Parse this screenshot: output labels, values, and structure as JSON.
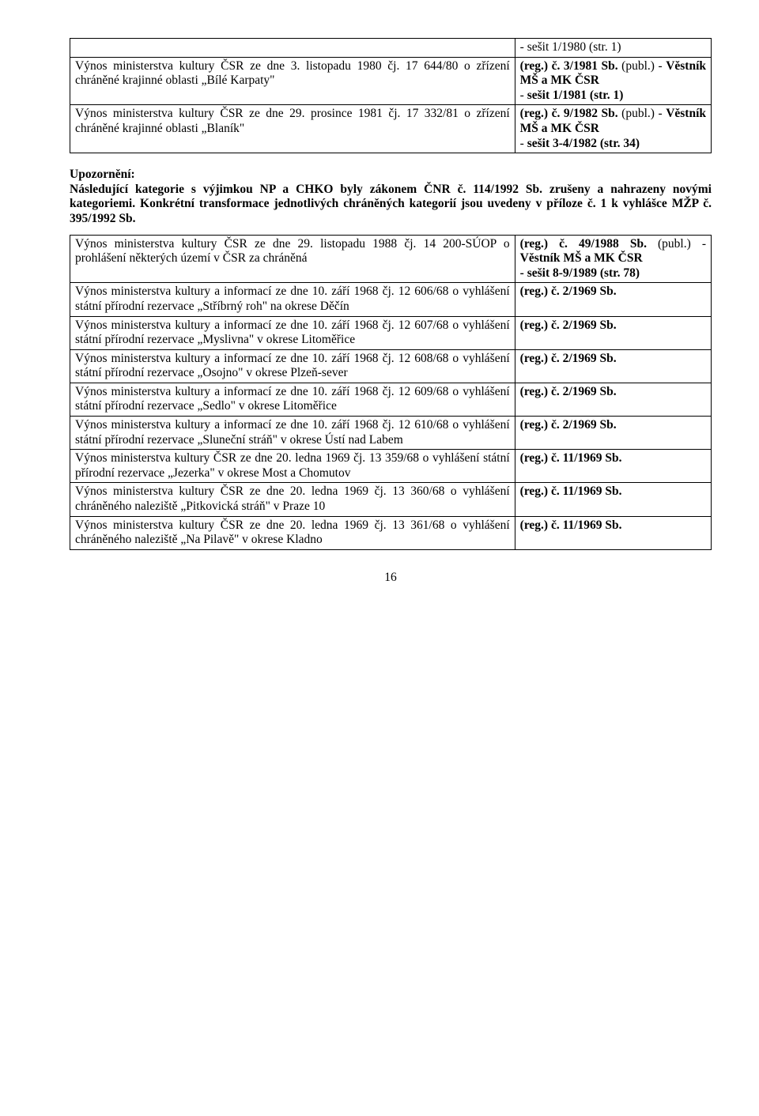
{
  "table1": {
    "rows": [
      {
        "left": "",
        "right": "- sešit 1/1980 (str. 1)"
      },
      {
        "left": "Výnos ministerstva kultury ČSR ze dne 3. listopadu 1980 čj. 17 644/80 o zřízení chráněné krajinné oblasti „Bílé Karpaty\"",
        "right": "<b>(reg.) č. 3/1981 Sb.</b> (publ.) - <b>Věstník MŠ a MK ČSR</b><br>- <b>sešit 1/1981 (str. 1)</b>"
      },
      {
        "left": "Výnos ministerstva kultury ČSR ze dne 29. prosince 1981 čj. 17 332/81 o zřízení chráněné krajinné oblasti „Blaník\"",
        "right": "<b>(reg.) č. 9/1982 Sb.</b> (publ.) - <b>Věstník MŠ a MK ČSR</b><br>- <b>sešit 3-4/1982 (str. 34)</b>"
      }
    ]
  },
  "notice": "Upozornění:<br>Následující kategorie s výjimkou NP a CHKO byly zákonem ČNR č. 114/1992 Sb. zrušeny a nahrazeny novými kategoriemi. Konkrétní transformace jednotlivých chráněných kategorií jsou uvedeny v příloze č. 1 k vyhlášce MŽP č. 395/1992 Sb.",
  "table2": {
    "rows": [
      {
        "left": "Výnos ministerstva kultury ČSR ze dne 29. listopadu 1988 čj. 14 200-SÚOP o prohlášení některých území v ČSR za chráněná",
        "right": "<b>(reg.) č. 49/1988 Sb.</b> (publ.) - <b>Věstník MŠ a MK ČSR<br>- sešit 8-9/1989 (str. 78)</b>"
      },
      {
        "left": "Výnos ministerstva kultury a informací ze dne 10. září 1968 čj. 12 606/68 o vyhlášení státní přírodní rezervace „Stříbrný roh\" na okrese Děčín",
        "right": "<b>(reg.) č. 2/1969 Sb.</b>"
      },
      {
        "left": "Výnos ministerstva kultury a informací ze dne 10. září 1968 čj. 12 607/68 o vyhlášení státní přírodní rezervace „Myslivna\" v okrese Litoměřice",
        "right": "<b>(reg.) č. 2/1969 Sb.</b>"
      },
      {
        "left": "Výnos ministerstva kultury a informací ze dne 10. září 1968 čj. 12 608/68 o vyhlášení státní přírodní rezervace „Osojno\" v okrese Plzeň-sever",
        "right": "<b>(reg.) č. 2/1969 Sb.</b>"
      },
      {
        "left": "Výnos ministerstva kultury a informací ze dne 10. září 1968 čj. 12 609/68 o vyhlášení státní přírodní rezervace „Sedlo\" v okrese Litoměřice",
        "right": "<b>(reg.) č. 2/1969 Sb.</b>"
      },
      {
        "left": "Výnos ministerstva kultury a informací ze dne 10. září 1968 čj. 12 610/68 o vyhlášení státní přírodní rezervace „Sluneční stráň\" v okrese Ústí nad Labem",
        "right": "<b>(reg.) č. 2/1969 Sb.</b>"
      },
      {
        "left": "Výnos ministerstva kultury ČSR ze dne 20. ledna 1969 čj. 13 359/68 o vyhlášení státní přírodní rezervace „Jezerka\" v okrese Most a Chomutov",
        "right": "<b>(reg.) č. 11/1969 Sb.</b>"
      },
      {
        "left": "Výnos ministerstva kultury ČSR ze dne 20. ledna 1969 čj. 13 360/68 o vyhlášení chráněného naleziště „Pitkovická stráň\" v Praze 10",
        "right": "<b>(reg.) č. 11/1969 Sb.</b>"
      },
      {
        "left": "Výnos ministerstva kultury ČSR ze dne 20. ledna 1969 čj. 13 361/68 o vyhlášení chráněného naleziště „Na Pilavě\" v okrese Kladno",
        "right": "<b>(reg.) č. 11/1969 Sb.</b>"
      }
    ]
  },
  "page_number": "16"
}
